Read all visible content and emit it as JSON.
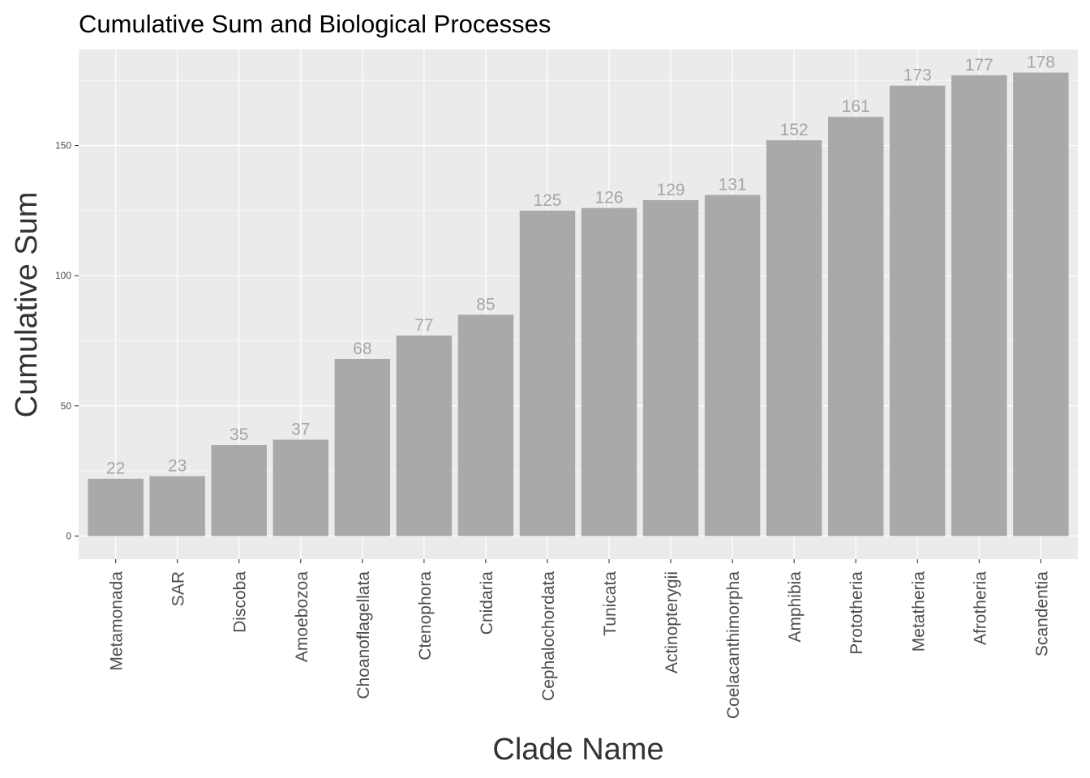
{
  "chart_data": {
    "type": "bar",
    "title": "Cumulative Sum and Biological Processes",
    "xlabel": "Clade Name",
    "ylabel": "Cumulative Sum",
    "categories": [
      "Metamonada",
      "SAR",
      "Discoba",
      "Amoebozoa",
      "Choanoflagellata",
      "Ctenophora",
      "Cnidaria",
      "Cephalochordata",
      "Tunicata",
      "Actinopterygii",
      "Coelacanthimorpha",
      "Amphibia",
      "Prototheria",
      "Metatheria",
      "Afrotheria",
      "Scandentia"
    ],
    "values": [
      22,
      23,
      35,
      37,
      68,
      77,
      85,
      125,
      126,
      129,
      131,
      152,
      161,
      173,
      177,
      178
    ],
    "y_ticks": [
      "0",
      "50",
      "100",
      "150"
    ],
    "ylim": [
      -8.9,
      186.9
    ],
    "grid": true,
    "legend": "none",
    "colors": {
      "panel": "#ebebeb",
      "grid": "#ffffff",
      "bar": "#a9a9a9",
      "bar_label": "#a6a6a6",
      "tick": "#333333"
    }
  }
}
